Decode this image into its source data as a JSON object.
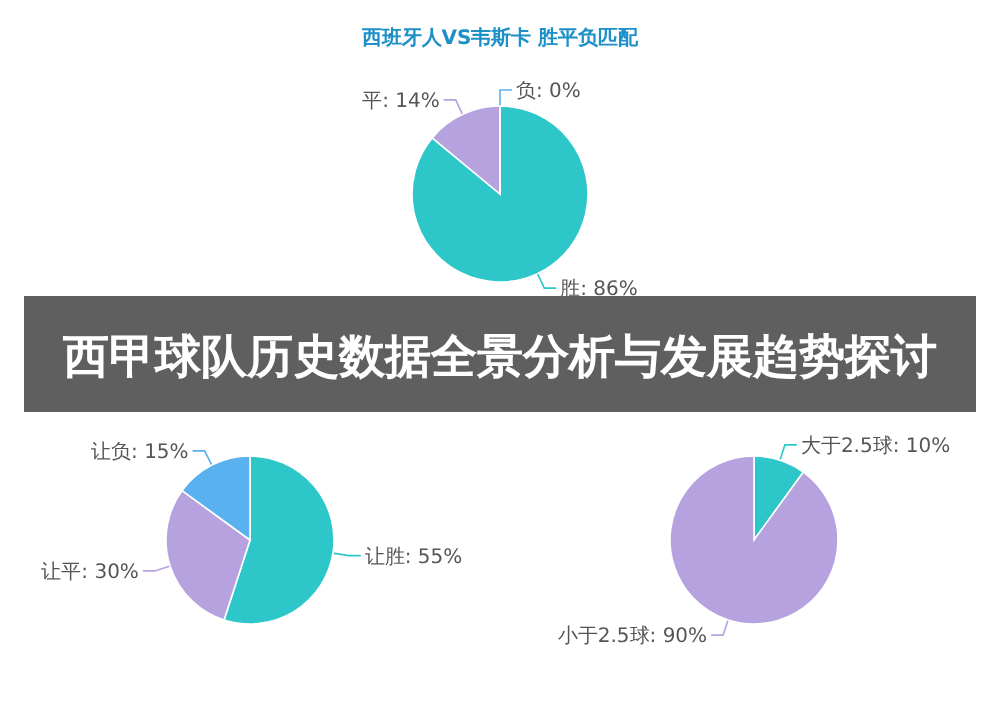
{
  "chart_data": [
    {
      "type": "pie",
      "title": "西班牙人VS韦斯卡 胜平负匹配",
      "categories": [
        "胜",
        "平",
        "负"
      ],
      "values": [
        86,
        14,
        0
      ],
      "value_labels": [
        ": 86%",
        ": 14%",
        ": 0%"
      ],
      "colors": [
        "#2ec7c9",
        "#b6a2de",
        "#5ab1ef"
      ]
    },
    {
      "type": "other",
      "title": "西甲球队历史数据全景分析与发展趋势探讨"
    },
    {
      "type": "pie",
      "categories": [
        "让胜",
        "让平",
        "让负"
      ],
      "values": [
        55,
        30,
        15
      ],
      "value_labels": [
        ": 55%",
        ": 30%",
        ": 15%"
      ],
      "colors": [
        "#2ec7c9",
        "#b6a2de",
        "#5ab1ef"
      ]
    },
    {
      "type": "pie",
      "categories": [
        "大于2.5球",
        "小于2.5球"
      ],
      "values": [
        10,
        90
      ],
      "value_labels": [
        ": 10%",
        ": 90%"
      ],
      "colors": [
        "#2ec7c9",
        "#b6a2de"
      ]
    }
  ]
}
